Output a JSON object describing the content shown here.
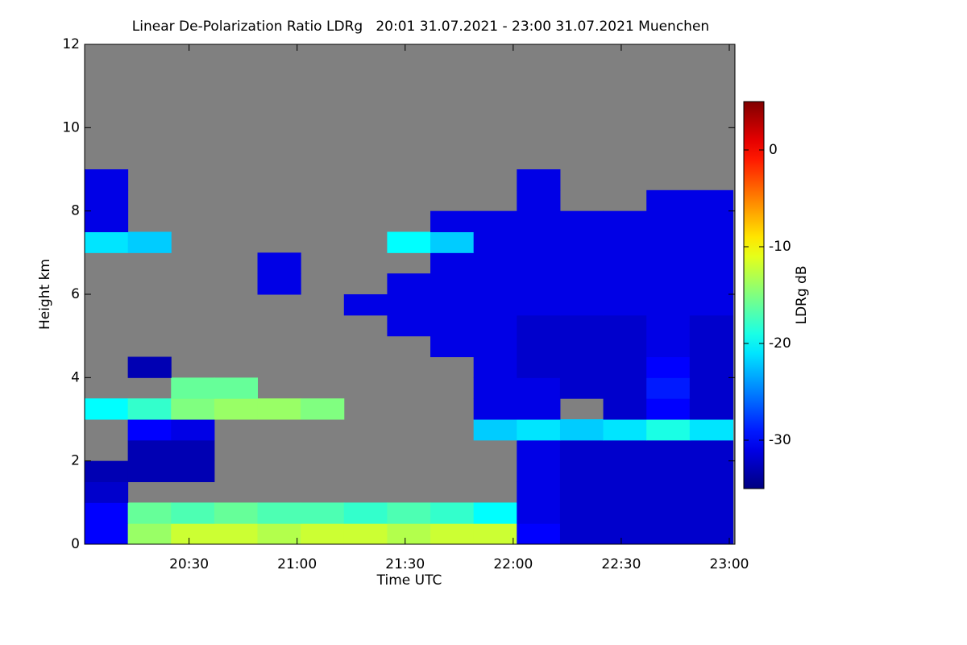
{
  "chart_data": {
    "type": "heatmap",
    "title": "Linear De-Polarization Ratio LDRg   20:01 31.07.2021 - 23:00 31.07.2021 Muenchen",
    "xlabel": "Time UTC",
    "ylabel": "Height km",
    "colorbar_label": "LDRg dB",
    "xlim": [
      1201,
      1380
    ],
    "xticks": [
      {
        "value": 1230,
        "label": "20:30"
      },
      {
        "value": 1260,
        "label": "21:00"
      },
      {
        "value": 1290,
        "label": "21:30"
      },
      {
        "value": 1320,
        "label": "22:00"
      },
      {
        "value": 1350,
        "label": "22:30"
      },
      {
        "value": 1380,
        "label": "23:00"
      }
    ],
    "ylim": [
      0,
      12
    ],
    "yticks": [
      0,
      2,
      4,
      6,
      8,
      10,
      12
    ],
    "zlim": [
      -35,
      5
    ],
    "zticks": [
      -30,
      -20,
      -10,
      0
    ],
    "colormap": "jet",
    "missing_color": "#808080",
    "xbins": [
      1201,
      1213,
      1225,
      1237,
      1249,
      1261,
      1273,
      1285,
      1297,
      1309,
      1321,
      1333,
      1345,
      1357,
      1369,
      1381
    ],
    "ybins": [
      0,
      0.5,
      1,
      1.5,
      2,
      2.5,
      3,
      3.5,
      4,
      4.5,
      5,
      5.5,
      6,
      6.5,
      7,
      7.5,
      8,
      8.5,
      9,
      9.5,
      10,
      10.5,
      11,
      11.5,
      12
    ],
    "z": [
      [
        -30,
        -14,
        -12,
        -12,
        -13,
        -12,
        -12,
        -13,
        -12,
        -12,
        -30,
        -32,
        -32,
        -32,
        -32
      ],
      [
        -30,
        -16,
        -17,
        -16,
        -17,
        -17,
        -18,
        -17,
        -18,
        -20,
        -31,
        -32,
        -32,
        -32,
        -32
      ],
      [
        -32,
        null,
        null,
        null,
        null,
        null,
        null,
        null,
        null,
        null,
        -31,
        -32,
        -32,
        -32,
        -32
      ],
      [
        -33,
        -33,
        -33,
        null,
        null,
        null,
        null,
        null,
        null,
        null,
        -31,
        -32,
        -32,
        -32,
        -32
      ],
      [
        null,
        -33,
        -33,
        null,
        null,
        null,
        null,
        null,
        null,
        null,
        -31,
        -32,
        -32,
        -32,
        -32
      ],
      [
        null,
        -30,
        -31,
        null,
        null,
        null,
        null,
        null,
        null,
        -22,
        -21,
        -22,
        -21,
        -19,
        -21
      ],
      [
        -20,
        -18,
        -15,
        -14,
        -14,
        -15,
        null,
        null,
        null,
        -31,
        -31,
        null,
        -32,
        -30,
        -32
      ],
      [
        null,
        null,
        -16,
        -16,
        null,
        null,
        null,
        null,
        null,
        -31,
        -31,
        -32,
        -32,
        -29,
        -32
      ],
      [
        null,
        -33,
        null,
        null,
        null,
        null,
        null,
        null,
        null,
        -31,
        -32,
        -32,
        -32,
        -30,
        -32
      ],
      [
        null,
        null,
        null,
        null,
        null,
        null,
        null,
        null,
        -31,
        -31,
        -32,
        -32,
        -32,
        -31,
        -32
      ],
      [
        null,
        null,
        null,
        null,
        null,
        null,
        null,
        -31,
        -31,
        -31,
        -32,
        -32,
        -32,
        -31,
        -32
      ],
      [
        null,
        null,
        null,
        null,
        null,
        null,
        -31,
        -31,
        -31,
        -31,
        -31,
        -31,
        -31,
        -31,
        -31
      ],
      [
        null,
        null,
        null,
        null,
        -31,
        null,
        null,
        -31,
        -31,
        -31,
        -31,
        -31,
        -31,
        -31,
        -31
      ],
      [
        null,
        null,
        null,
        null,
        -31,
        null,
        null,
        null,
        -31,
        -31,
        -31,
        -31,
        -31,
        -31,
        -31
      ],
      [
        -21,
        -22,
        null,
        null,
        null,
        null,
        null,
        -20,
        -22,
        -31,
        -31,
        -31,
        -31,
        -31,
        -31
      ],
      [
        -31,
        null,
        null,
        null,
        null,
        null,
        null,
        null,
        -31,
        -31,
        -31,
        -31,
        -31,
        -31,
        -31
      ],
      [
        -31,
        null,
        null,
        null,
        null,
        null,
        null,
        null,
        null,
        null,
        -31,
        null,
        null,
        -31,
        -31
      ],
      [
        -31,
        null,
        null,
        null,
        null,
        null,
        null,
        null,
        null,
        null,
        -31,
        null,
        null,
        null,
        null
      ],
      [
        null,
        null,
        null,
        null,
        null,
        null,
        null,
        null,
        null,
        null,
        null,
        null,
        null,
        null,
        null
      ],
      [
        null,
        null,
        null,
        null,
        null,
        null,
        null,
        null,
        null,
        null,
        null,
        null,
        null,
        null,
        null
      ],
      [
        null,
        null,
        null,
        null,
        null,
        null,
        null,
        null,
        null,
        null,
        null,
        null,
        null,
        null,
        null
      ],
      [
        null,
        null,
        null,
        null,
        null,
        null,
        null,
        null,
        null,
        null,
        null,
        null,
        null,
        null,
        null
      ],
      [
        null,
        null,
        null,
        null,
        null,
        null,
        null,
        null,
        null,
        null,
        null,
        null,
        null,
        null,
        null
      ],
      [
        null,
        null,
        null,
        null,
        null,
        null,
        null,
        null,
        null,
        null,
        null,
        null,
        null,
        null,
        null
      ]
    ]
  }
}
